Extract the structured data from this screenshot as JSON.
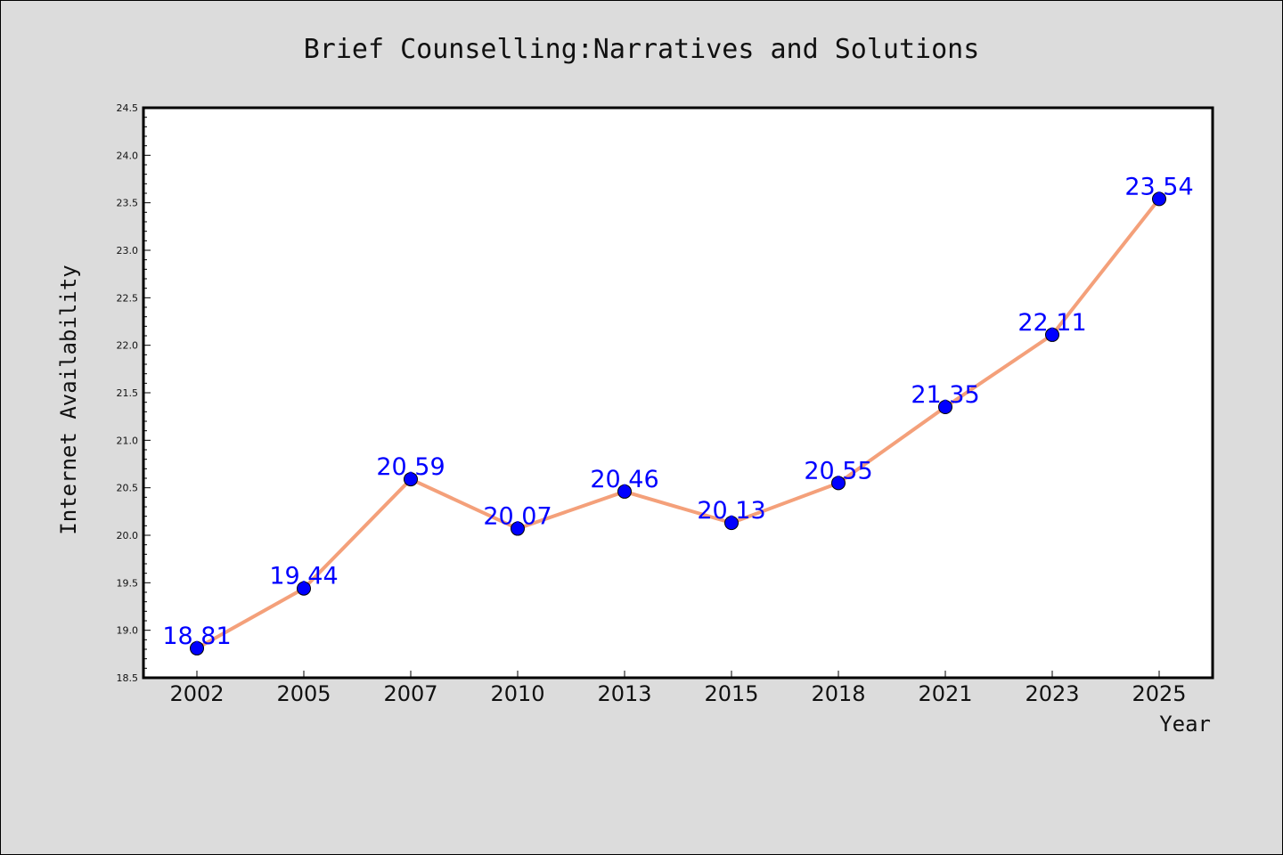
{
  "chart_data": {
    "type": "line",
    "title": "Brief Counselling:Narratives and Solutions",
    "xlabel": "Year",
    "ylabel": "Internet Availability",
    "categories": [
      "2002",
      "2005",
      "2007",
      "2010",
      "2013",
      "2015",
      "2018",
      "2021",
      "2023",
      "2025"
    ],
    "series": [
      {
        "values": [
          18.81,
          19.44,
          20.59,
          20.07,
          20.46,
          20.13,
          20.55,
          21.35,
          22.11,
          23.54
        ],
        "data_labels": [
          "18.81",
          "19.44",
          "20.59",
          "20.07",
          "20.46",
          "20.13",
          "20.55",
          "21.35",
          "22.11",
          "23.54"
        ],
        "line_color": "#f4a07a",
        "marker_color": "#0000ff"
      }
    ],
    "ylim": [
      18.5,
      24.5
    ],
    "yticks": [
      "18.5",
      "19.0",
      "19.5",
      "20.0",
      "20.5",
      "21.0",
      "21.5",
      "22.0",
      "22.5",
      "23.0",
      "23.5",
      "24.0",
      "24.5"
    ],
    "grid": false,
    "legend": "none",
    "colors": {
      "background": "#dcdcdc",
      "plot_background": "#ffffff",
      "data_label": "#0000ff"
    }
  }
}
